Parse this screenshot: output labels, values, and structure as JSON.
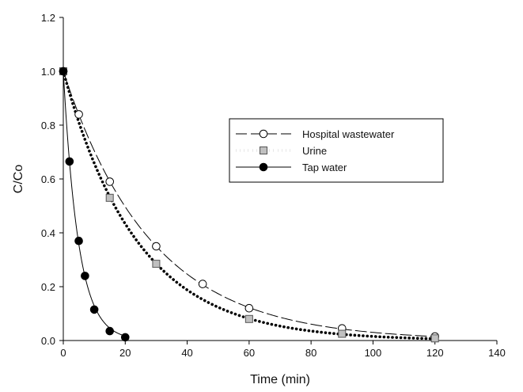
{
  "chart_data": {
    "type": "scatter",
    "title": "",
    "xlabel": "Time (min)",
    "ylabel": "C/Co",
    "xlim": [
      0,
      140
    ],
    "ylim": [
      0,
      1.2
    ],
    "xticks": [
      "0",
      "20",
      "40",
      "60",
      "80",
      "100",
      "120",
      "140"
    ],
    "yticks": [
      "0.0",
      "0.2",
      "0.4",
      "0.6",
      "0.8",
      "1.0",
      "1.2"
    ],
    "grid": false,
    "legend_position": "center-right",
    "series": [
      {
        "name": "Hospital wastewater",
        "marker": "open-circle",
        "line": "long-dash",
        "color": "#000000",
        "x": [
          0,
          5,
          15,
          30,
          45,
          60,
          90,
          120
        ],
        "y": [
          1.0,
          0.84,
          0.59,
          0.35,
          0.21,
          0.12,
          0.045,
          0.015
        ],
        "fit_rate": 0.035
      },
      {
        "name": "Urine",
        "marker": "gray-square",
        "line": "dotted",
        "color": "#000000",
        "marker_fill": "#c0c0c0",
        "x": [
          0,
          15,
          30,
          60,
          90,
          120
        ],
        "y": [
          1.0,
          0.53,
          0.285,
          0.08,
          0.025,
          0.008
        ],
        "fit_rate": 0.0418
      },
      {
        "name": "Tap water",
        "marker": "filled-circle",
        "line": "solid",
        "color": "#000000",
        "x": [
          0,
          2,
          5,
          7,
          10,
          15,
          20
        ],
        "y": [
          1.0,
          0.665,
          0.37,
          0.24,
          0.115,
          0.035,
          0.012
        ],
        "fit_rate": 0.205
      }
    ]
  }
}
